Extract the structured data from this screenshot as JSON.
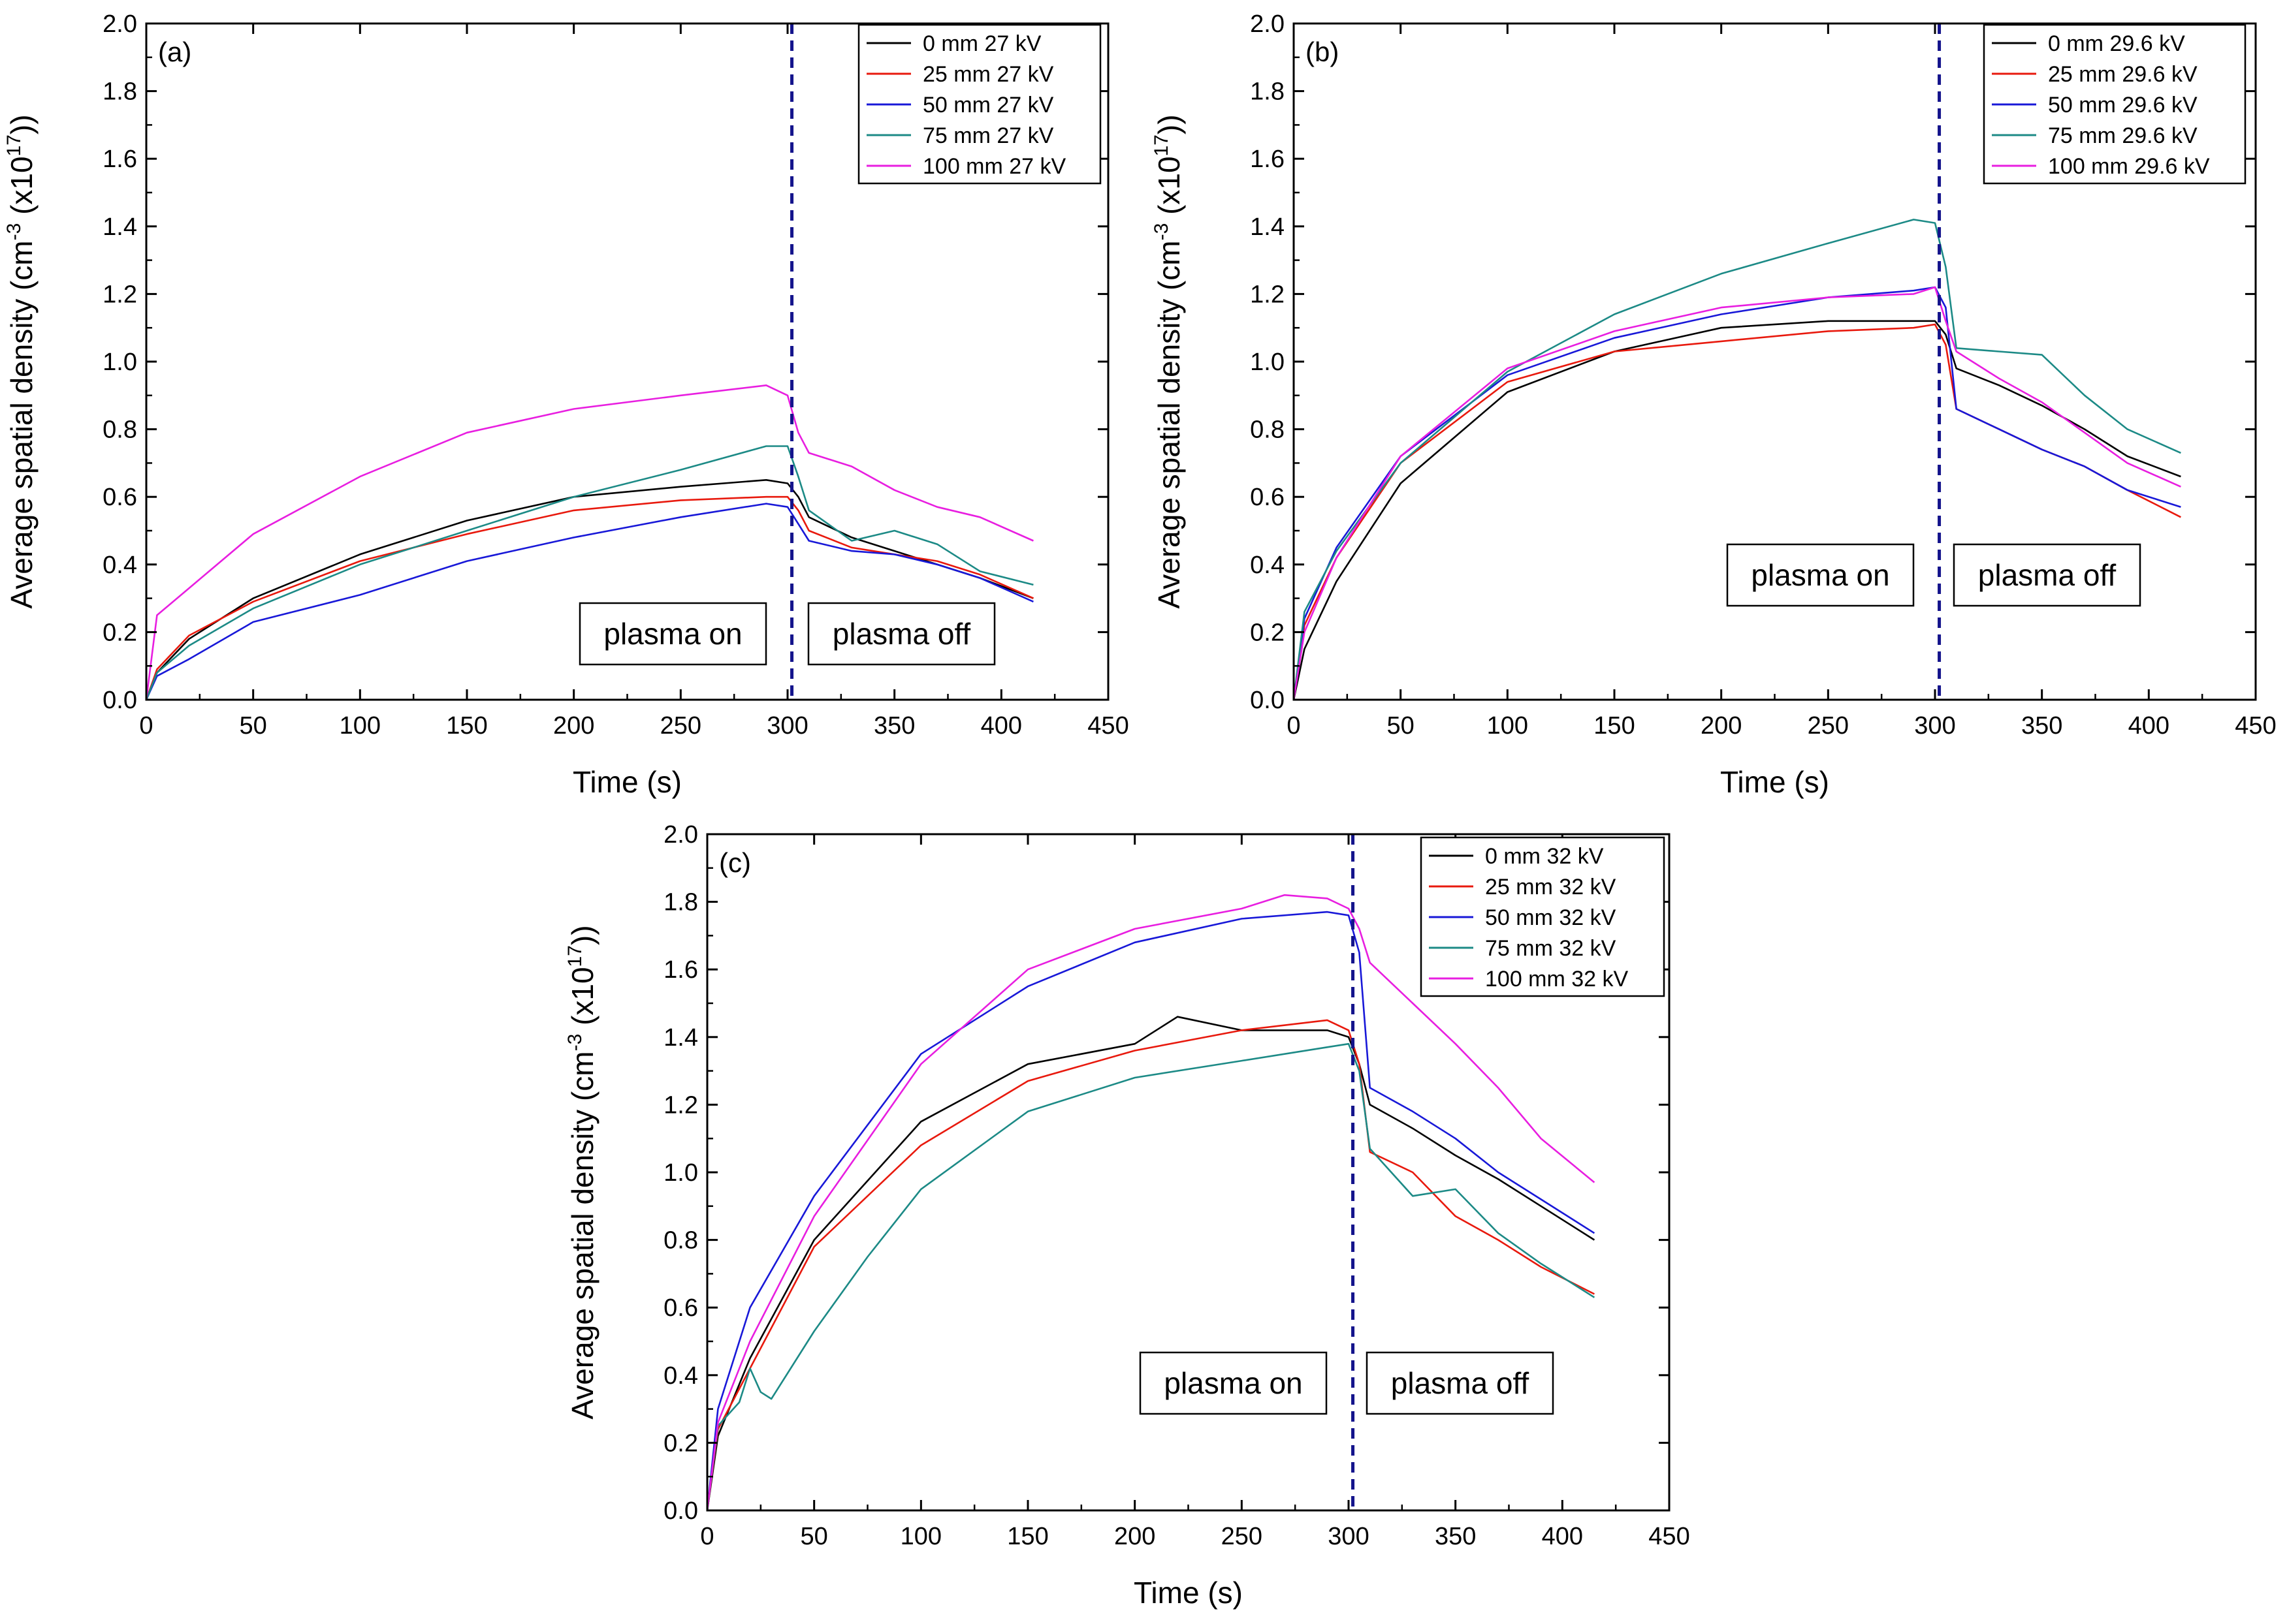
{
  "figure": {
    "panels": [
      "a",
      "b",
      "c"
    ]
  },
  "chart_data": [
    {
      "type": "line",
      "panel_label": "(a)",
      "xlabel": "Time (s)",
      "ylabel": "Average spatial density (cm-3 (x1017))",
      "ylabel_parts": {
        "pre": "Average spatial density (cm",
        "exp1": "-3",
        "mid": " (x10",
        "exp2": "17",
        "post": "))"
      },
      "xlim": [
        0,
        450
      ],
      "ylim": [
        0.0,
        2.0
      ],
      "xticks": [
        0,
        50,
        100,
        150,
        200,
        250,
        300,
        350,
        400,
        450
      ],
      "yticks": [
        0.0,
        0.2,
        0.4,
        0.6,
        0.8,
        1.0,
        1.2,
        1.4,
        1.6,
        1.8,
        2.0
      ],
      "ytick_labels": [
        "0.0",
        "0.2",
        "0.4",
        "0.6",
        "0.8",
        "1.0",
        "1.2",
        "1.4",
        "1.6",
        "1.8",
        "2.0"
      ],
      "plasma_off_time": 302,
      "annotations": [
        "plasma on",
        "plasma off"
      ],
      "legend_position": "top-right",
      "series": [
        {
          "name": "0 mm 27 kV",
          "color": "#000000",
          "x": [
            0,
            5,
            20,
            50,
            100,
            150,
            200,
            250,
            290,
            300,
            305,
            310,
            330,
            350,
            370,
            390,
            415
          ],
          "y": [
            0.0,
            0.08,
            0.18,
            0.3,
            0.43,
            0.53,
            0.6,
            0.63,
            0.65,
            0.64,
            0.6,
            0.54,
            0.48,
            0.44,
            0.4,
            0.36,
            0.3
          ]
        },
        {
          "name": "25 mm 27 kV",
          "color": "#e8190d",
          "x": [
            0,
            5,
            20,
            50,
            100,
            150,
            200,
            250,
            290,
            300,
            305,
            310,
            330,
            350,
            370,
            390,
            415
          ],
          "y": [
            0.0,
            0.09,
            0.19,
            0.29,
            0.41,
            0.49,
            0.56,
            0.59,
            0.6,
            0.6,
            0.56,
            0.5,
            0.45,
            0.43,
            0.41,
            0.37,
            0.3
          ]
        },
        {
          "name": "50 mm 27 kV",
          "color": "#1818d8",
          "x": [
            0,
            5,
            20,
            50,
            100,
            150,
            200,
            250,
            290,
            300,
            305,
            310,
            330,
            350,
            370,
            390,
            415
          ],
          "y": [
            0.0,
            0.07,
            0.12,
            0.23,
            0.31,
            0.41,
            0.48,
            0.54,
            0.58,
            0.57,
            0.52,
            0.47,
            0.44,
            0.43,
            0.4,
            0.36,
            0.29
          ]
        },
        {
          "name": "75 mm 27 kV",
          "color": "#1c8a86",
          "x": [
            0,
            5,
            20,
            50,
            100,
            150,
            200,
            250,
            290,
            300,
            305,
            310,
            330,
            350,
            370,
            390,
            415
          ],
          "y": [
            0.0,
            0.08,
            0.16,
            0.27,
            0.4,
            0.5,
            0.6,
            0.68,
            0.75,
            0.75,
            0.66,
            0.56,
            0.47,
            0.5,
            0.46,
            0.38,
            0.34
          ]
        },
        {
          "name": "100 mm 27 kV",
          "color": "#e81ee0",
          "x": [
            0,
            5,
            20,
            50,
            100,
            150,
            200,
            250,
            290,
            300,
            305,
            310,
            330,
            350,
            370,
            390,
            415
          ],
          "y": [
            0.0,
            0.25,
            0.33,
            0.49,
            0.66,
            0.79,
            0.86,
            0.9,
            0.93,
            0.9,
            0.79,
            0.73,
            0.69,
            0.62,
            0.57,
            0.54,
            0.47
          ]
        }
      ]
    },
    {
      "type": "line",
      "panel_label": "(b)",
      "xlabel": "Time (s)",
      "ylabel": "Average spatial density (cm-3 (x1017))",
      "ylabel_parts": {
        "pre": "Average spatial density (cm",
        "exp1": "-3",
        "mid": " (x10",
        "exp2": "17",
        "post": "))"
      },
      "xlim": [
        0,
        450
      ],
      "ylim": [
        0.0,
        2.0
      ],
      "xticks": [
        0,
        50,
        100,
        150,
        200,
        250,
        300,
        350,
        400,
        450
      ],
      "yticks": [
        0.0,
        0.2,
        0.4,
        0.6,
        0.8,
        1.0,
        1.2,
        1.4,
        1.6,
        1.8,
        2.0
      ],
      "ytick_labels": [
        "0.0",
        "0.2",
        "0.4",
        "0.6",
        "0.8",
        "1.0",
        "1.2",
        "1.4",
        "1.6",
        "1.8",
        "2.0"
      ],
      "plasma_off_time": 302,
      "annotations": [
        "plasma on",
        "plasma off"
      ],
      "legend_position": "top-right",
      "series": [
        {
          "name": "0 mm 29.6 kV",
          "color": "#000000",
          "x": [
            0,
            5,
            20,
            50,
            100,
            150,
            200,
            250,
            290,
            300,
            305,
            310,
            330,
            350,
            370,
            390,
            415
          ],
          "y": [
            0.0,
            0.15,
            0.35,
            0.64,
            0.91,
            1.03,
            1.1,
            1.12,
            1.12,
            1.12,
            1.08,
            0.98,
            0.93,
            0.87,
            0.8,
            0.72,
            0.66
          ]
        },
        {
          "name": "25 mm 29.6 kV",
          "color": "#e8190d",
          "x": [
            0,
            5,
            20,
            50,
            100,
            150,
            200,
            250,
            290,
            300,
            305,
            310,
            330,
            350,
            370,
            390,
            415
          ],
          "y": [
            0.0,
            0.22,
            0.42,
            0.7,
            0.94,
            1.03,
            1.06,
            1.09,
            1.1,
            1.11,
            1.05,
            0.86,
            0.8,
            0.74,
            0.69,
            0.62,
            0.54
          ]
        },
        {
          "name": "50 mm 29.6 kV",
          "color": "#1818d8",
          "x": [
            0,
            5,
            20,
            50,
            100,
            150,
            200,
            250,
            290,
            300,
            305,
            310,
            330,
            350,
            370,
            390,
            415
          ],
          "y": [
            0.0,
            0.24,
            0.45,
            0.72,
            0.96,
            1.07,
            1.14,
            1.19,
            1.21,
            1.22,
            1.16,
            0.86,
            0.8,
            0.74,
            0.69,
            0.62,
            0.57
          ]
        },
        {
          "name": "75 mm 29.6 kV",
          "color": "#1c8a86",
          "x": [
            0,
            5,
            20,
            50,
            100,
            150,
            200,
            250,
            290,
            300,
            305,
            310,
            330,
            350,
            370,
            390,
            415
          ],
          "y": [
            0.0,
            0.26,
            0.44,
            0.7,
            0.97,
            1.14,
            1.26,
            1.35,
            1.42,
            1.41,
            1.28,
            1.04,
            1.03,
            1.02,
            0.9,
            0.8,
            0.73
          ]
        },
        {
          "name": "100 mm 29.6 kV",
          "color": "#e81ee0",
          "x": [
            0,
            5,
            20,
            50,
            100,
            150,
            200,
            250,
            290,
            300,
            305,
            310,
            330,
            350,
            370,
            390,
            415
          ],
          "y": [
            0.0,
            0.2,
            0.42,
            0.72,
            0.98,
            1.09,
            1.16,
            1.19,
            1.2,
            1.22,
            1.12,
            1.03,
            0.95,
            0.88,
            0.79,
            0.7,
            0.63
          ]
        }
      ]
    },
    {
      "type": "line",
      "panel_label": "(c)",
      "xlabel": "Time (s)",
      "ylabel": "Average spatial density (cm-3 (x1017))",
      "ylabel_parts": {
        "pre": "Average spatial density (cm",
        "exp1": "-3",
        "mid": " (x10",
        "exp2": "17",
        "post": "))"
      },
      "xlim": [
        0,
        450
      ],
      "ylim": [
        0.0,
        2.0
      ],
      "xticks": [
        0,
        50,
        100,
        150,
        200,
        250,
        300,
        350,
        400,
        450
      ],
      "yticks": [
        0.0,
        0.2,
        0.4,
        0.6,
        0.8,
        1.0,
        1.2,
        1.4,
        1.6,
        1.8,
        2.0
      ],
      "ytick_labels": [
        "0.0",
        "0.2",
        "0.4",
        "0.6",
        "0.8",
        "1.0",
        "1.2",
        "1.4",
        "1.6",
        "1.8",
        "2.0"
      ],
      "plasma_off_time": 302,
      "annotations": [
        "plasma on",
        "plasma off"
      ],
      "legend_position": "top-right",
      "series": [
        {
          "name": "0 mm 32 kV",
          "color": "#000000",
          "x": [
            0,
            5,
            20,
            50,
            100,
            150,
            200,
            220,
            250,
            290,
            300,
            305,
            310,
            330,
            350,
            370,
            390,
            415
          ],
          "y": [
            0.0,
            0.22,
            0.45,
            0.8,
            1.15,
            1.32,
            1.38,
            1.46,
            1.42,
            1.42,
            1.4,
            1.32,
            1.2,
            1.13,
            1.05,
            0.98,
            0.9,
            0.8
          ]
        },
        {
          "name": "25 mm 32 kV",
          "color": "#e8190d",
          "x": [
            0,
            5,
            20,
            50,
            100,
            150,
            200,
            250,
            290,
            300,
            305,
            310,
            330,
            350,
            370,
            390,
            415
          ],
          "y": [
            0.0,
            0.24,
            0.42,
            0.78,
            1.08,
            1.27,
            1.36,
            1.42,
            1.45,
            1.42,
            1.32,
            1.06,
            1.0,
            0.87,
            0.8,
            0.72,
            0.64
          ]
        },
        {
          "name": "50 mm 32 kV",
          "color": "#1818d8",
          "x": [
            0,
            5,
            20,
            50,
            100,
            150,
            200,
            250,
            290,
            300,
            305,
            310,
            330,
            350,
            370,
            390,
            415
          ],
          "y": [
            0.0,
            0.3,
            0.6,
            0.93,
            1.35,
            1.55,
            1.68,
            1.75,
            1.77,
            1.76,
            1.65,
            1.25,
            1.18,
            1.1,
            1.0,
            0.92,
            0.82
          ]
        },
        {
          "name": "75 mm 32 kV",
          "color": "#1c8a86",
          "x": [
            0,
            5,
            15,
            20,
            25,
            30,
            50,
            75,
            100,
            150,
            200,
            250,
            290,
            300,
            305,
            310,
            330,
            350,
            370,
            390,
            415
          ],
          "y": [
            0.0,
            0.25,
            0.32,
            0.42,
            0.35,
            0.33,
            0.53,
            0.75,
            0.95,
            1.18,
            1.28,
            1.33,
            1.37,
            1.38,
            1.3,
            1.07,
            0.93,
            0.95,
            0.82,
            0.73,
            0.63
          ]
        },
        {
          "name": "100 mm 32 kV",
          "color": "#e81ee0",
          "x": [
            0,
            5,
            20,
            50,
            100,
            150,
            200,
            250,
            270,
            290,
            300,
            305,
            310,
            330,
            350,
            370,
            390,
            415
          ],
          "y": [
            0.0,
            0.26,
            0.5,
            0.87,
            1.32,
            1.6,
            1.72,
            1.78,
            1.82,
            1.81,
            1.78,
            1.72,
            1.62,
            1.5,
            1.38,
            1.25,
            1.1,
            0.97
          ]
        }
      ]
    }
  ]
}
